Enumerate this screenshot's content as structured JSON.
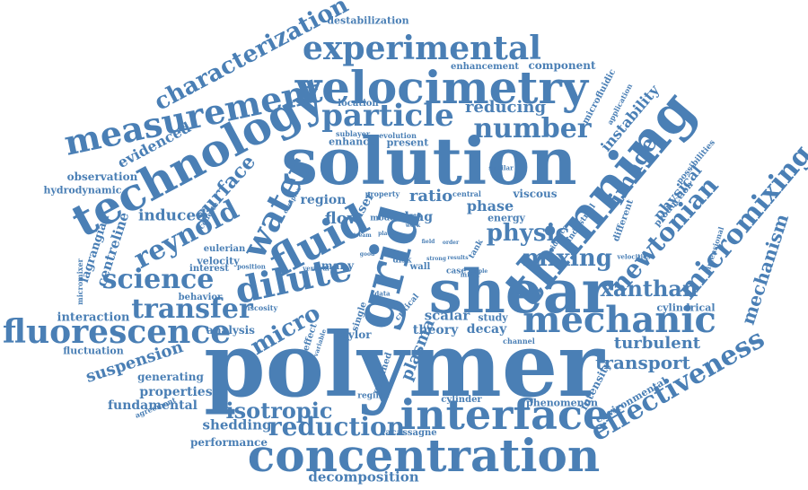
{
  "accent_color": "#4a7fb5",
  "background_color": "#ffffff",
  "words": [
    {
      "t": "polymer"
    },
    {
      "t": "solution"
    },
    {
      "t": "shear"
    },
    {
      "t": "grid"
    },
    {
      "t": "thinning"
    },
    {
      "t": "concentration"
    },
    {
      "t": "technology"
    },
    {
      "t": "velocimetry"
    },
    {
      "t": "interface"
    },
    {
      "t": "fluid"
    },
    {
      "t": "mechanic"
    },
    {
      "t": "measurement"
    },
    {
      "t": "experimental"
    },
    {
      "t": "dilute"
    },
    {
      "t": "fluorescence"
    },
    {
      "t": "particle"
    },
    {
      "t": "micromixing"
    },
    {
      "t": "effectiveness"
    },
    {
      "t": "reynold"
    },
    {
      "t": "water"
    },
    {
      "t": "characterization"
    },
    {
      "t": "transfer"
    },
    {
      "t": "number"
    },
    {
      "t": "reduction"
    },
    {
      "t": "newtonian"
    },
    {
      "t": "xanthan"
    },
    {
      "t": "science"
    },
    {
      "t": "mixing"
    },
    {
      "t": "physic"
    },
    {
      "t": "isotropic"
    },
    {
      "t": "image"
    },
    {
      "t": "micro"
    },
    {
      "t": "mechanism"
    },
    {
      "t": "transport"
    },
    {
      "t": "turbulent"
    },
    {
      "t": "surface"
    },
    {
      "t": "suspension"
    },
    {
      "t": "plasma"
    },
    {
      "t": "reducing"
    },
    {
      "t": "instability"
    },
    {
      "t": "physical"
    },
    {
      "t": "induced"
    },
    {
      "t": "evidenced"
    },
    {
      "t": "centreline"
    },
    {
      "t": "decomposition"
    },
    {
      "t": "shedding"
    },
    {
      "t": "fundamental"
    },
    {
      "t": "properties"
    },
    {
      "t": "interaction"
    },
    {
      "t": "observation"
    },
    {
      "t": "performance"
    },
    {
      "t": "hydrodynamic"
    },
    {
      "t": "lagrangian"
    },
    {
      "t": "fluctuation"
    },
    {
      "t": "generating"
    },
    {
      "t": "analysis"
    },
    {
      "t": "ratio"
    },
    {
      "t": "region"
    },
    {
      "t": "flow"
    },
    {
      "t": "phase"
    },
    {
      "t": "viscous"
    },
    {
      "t": "energy"
    },
    {
      "t": "drag"
    },
    {
      "t": "component"
    },
    {
      "t": "enhancement"
    },
    {
      "t": "location"
    },
    {
      "t": "destabilization"
    },
    {
      "t": "microfluidic"
    },
    {
      "t": "application"
    },
    {
      "t": "present"
    },
    {
      "t": "enhance"
    },
    {
      "t": "evolution"
    },
    {
      "t": "sublayer"
    },
    {
      "t": "production"
    },
    {
      "t": "possibilities"
    },
    {
      "t": "different"
    },
    {
      "t": "industrial"
    },
    {
      "t": "cylindrical"
    },
    {
      "t": "scalar"
    },
    {
      "t": "theory"
    },
    {
      "t": "decay"
    },
    {
      "t": "study"
    },
    {
      "t": "taylor"
    },
    {
      "t": "intensity"
    },
    {
      "t": "environmental"
    },
    {
      "t": "phenomenon"
    },
    {
      "t": "cylinder"
    },
    {
      "t": "lacassagne"
    },
    {
      "t": "regime"
    },
    {
      "t": "confined"
    },
    {
      "t": "agreement"
    },
    {
      "t": "eulerian"
    },
    {
      "t": "velocity"
    },
    {
      "t": "interest"
    },
    {
      "t": "position"
    },
    {
      "t": "behavior"
    },
    {
      "t": "viscosity"
    },
    {
      "t": "effect"
    },
    {
      "t": "variable"
    },
    {
      "t": "many"
    },
    {
      "t": "wall"
    },
    {
      "t": "case"
    },
    {
      "t": "disk"
    },
    {
      "t": "tank"
    },
    {
      "t": "single"
    },
    {
      "t": "data"
    },
    {
      "t": "critical"
    },
    {
      "t": "mode"
    },
    {
      "t": "laser"
    },
    {
      "t": "property"
    },
    {
      "t": "couette"
    },
    {
      "t": "micromixer"
    },
    {
      "t": "central"
    },
    {
      "t": "similar"
    },
    {
      "t": "evidence"
    },
    {
      "t": "velocities"
    },
    {
      "t": "dimensional"
    },
    {
      "t": "channel"
    },
    {
      "t": "mixer"
    },
    {
      "t": "vertical"
    },
    {
      "t": "work"
    },
    {
      "t": "place"
    },
    {
      "t": "complex"
    },
    {
      "t": "stream"
    },
    {
      "t": "good"
    },
    {
      "t": "field"
    },
    {
      "t": "order"
    },
    {
      "t": "triple"
    },
    {
      "t": "results"
    },
    {
      "t": "strong"
    }
  ]
}
